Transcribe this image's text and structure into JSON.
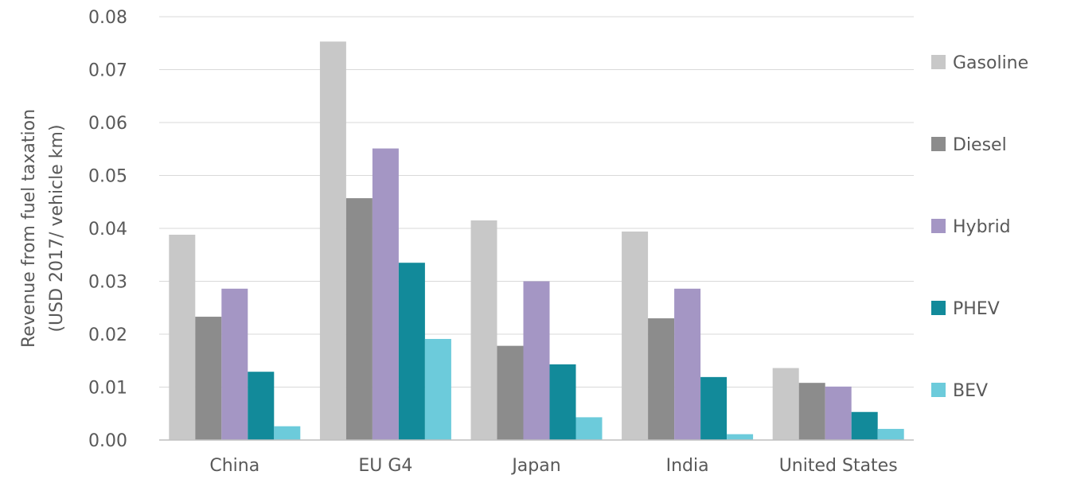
{
  "chart_data": {
    "type": "bar",
    "title": "",
    "xlabel": "",
    "ylabel_lines": [
      "Revenue from fuel taxation",
      "(USD 2017/ vehicle km)"
    ],
    "ylim": [
      0,
      0.08
    ],
    "yticks": [
      "0.00",
      "0.01",
      "0.02",
      "0.03",
      "0.04",
      "0.05",
      "0.06",
      "0.07",
      "0.08"
    ],
    "grid": true,
    "legend_position": "right",
    "categories": [
      "China",
      "EU G4",
      "Japan",
      "India",
      "United States"
    ],
    "series": [
      {
        "name": "Gasoline",
        "color": "#c8c8c8",
        "values": [
          0.0388,
          0.0753,
          0.0415,
          0.0394,
          0.0136
        ]
      },
      {
        "name": "Diesel",
        "color": "#8c8c8c",
        "values": [
          0.0233,
          0.0457,
          0.0178,
          0.023,
          0.0108
        ]
      },
      {
        "name": "Hybrid",
        "color": "#a496c4",
        "values": [
          0.0286,
          0.0551,
          0.03,
          0.0286,
          0.0101
        ]
      },
      {
        "name": "PHEV",
        "color": "#128a9a",
        "values": [
          0.0129,
          0.0335,
          0.0143,
          0.0119,
          0.0053
        ]
      },
      {
        "name": "BEV",
        "color": "#6ccbdb",
        "values": [
          0.0026,
          0.0191,
          0.0043,
          0.0011,
          0.0021
        ]
      }
    ]
  }
}
